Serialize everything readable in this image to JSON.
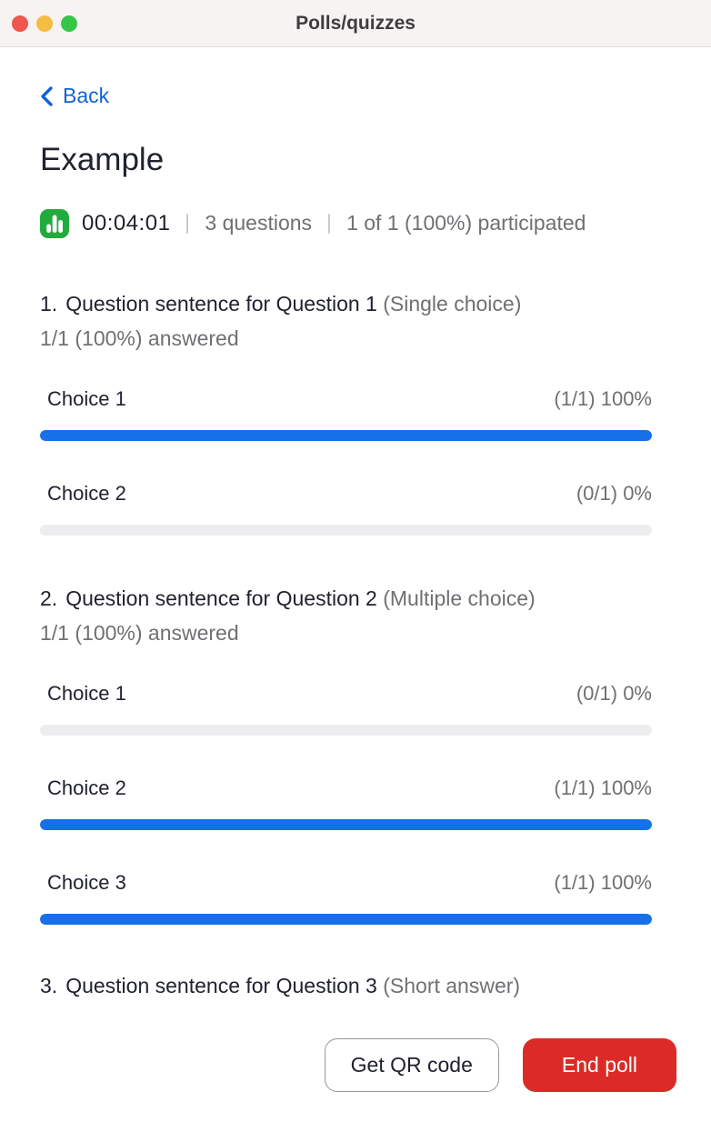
{
  "window": {
    "title": "Polls/quizzes",
    "traffic_lights": [
      "close",
      "minimize",
      "zoom"
    ]
  },
  "nav": {
    "back_label": "Back"
  },
  "poll": {
    "title": "Example",
    "timer": "00:04:01",
    "questions_count": "3 questions",
    "participation": "1 of 1 (100%) participated",
    "questions": [
      {
        "number": "1.",
        "text": "Question sentence for Question 1",
        "type": "(Single choice)",
        "answered": "1/1 (100%) answered",
        "choices": [
          {
            "label": "Choice 1",
            "stat": "(1/1) 100%",
            "percent": 100
          },
          {
            "label": "Choice 2",
            "stat": "(0/1) 0%",
            "percent": 0
          }
        ]
      },
      {
        "number": "2.",
        "text": "Question sentence for Question 2",
        "type": "(Multiple choice)",
        "answered": "1/1 (100%) answered",
        "choices": [
          {
            "label": "Choice 1",
            "stat": "(0/1) 0%",
            "percent": 0
          },
          {
            "label": "Choice 2",
            "stat": "(1/1) 100%",
            "percent": 100
          },
          {
            "label": "Choice 3",
            "stat": "(1/1) 100%",
            "percent": 100
          }
        ]
      },
      {
        "number": "3.",
        "text": "Question sentence for Question 3",
        "type": "(Short answer)"
      }
    ]
  },
  "footer": {
    "qr_button_label": "Get QR code",
    "end_button_label": "End poll"
  },
  "colors": {
    "accent_blue": "#1670e8",
    "link_blue": "#1063d6",
    "danger_red": "#dc2b26",
    "poll_icon_green": "#22ab3d",
    "track_gray": "#ededef",
    "text_gray": "#6e7073",
    "text_dark": "#20222e"
  }
}
